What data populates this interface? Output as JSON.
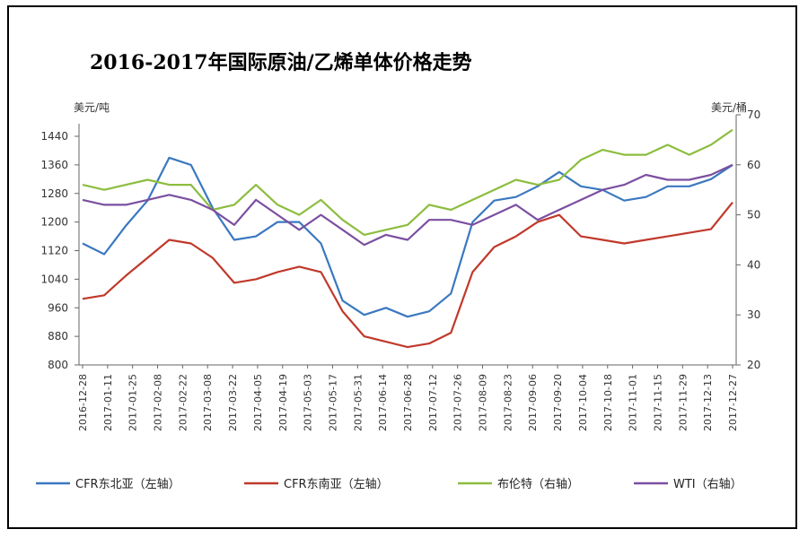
{
  "chart_data": {
    "type": "line",
    "title": "2016-2017年国际原油/乙烯单体价格走势",
    "left_unit": "美元/吨",
    "right_unit": "美元/桶",
    "y_left": {
      "min": 800,
      "max": 1440,
      "ticks": [
        800,
        880,
        960,
        1040,
        1120,
        1200,
        1280,
        1360,
        1440
      ]
    },
    "y_right": {
      "min": 20,
      "max": 70,
      "ticks": [
        20,
        30,
        40,
        50,
        60,
        70
      ]
    },
    "x_ticks": [
      "2016-12-28",
      "2017-01-11",
      "2017-01-25",
      "2017-02-08",
      "2017-02-22",
      "2017-03-08",
      "2017-03-22",
      "2017-04-05",
      "2017-04-19",
      "2017-05-03",
      "2017-05-17",
      "2017-05-31",
      "2017-06-14",
      "2017-06-28",
      "2017-07-12",
      "2017-07-26",
      "2017-08-09",
      "2017-08-23",
      "2017-09-06",
      "2017-09-20",
      "2017-10-04",
      "2017-10-18",
      "2017-11-01",
      "2017-11-15",
      "2017-11-29",
      "2017-12-13",
      "2017-12-27"
    ],
    "series": [
      {
        "name": "CFR东北亚（左轴）",
        "axis": "left",
        "color": "#3b78c0",
        "values": [
          1140,
          1110,
          1190,
          1260,
          1380,
          1360,
          1240,
          1150,
          1160,
          1200,
          1200,
          1140,
          980,
          940,
          960,
          935,
          950,
          1000,
          1200,
          1260,
          1270,
          1300,
          1340,
          1300,
          1290,
          1260,
          1270,
          1300,
          1300,
          1320,
          1360
        ]
      },
      {
        "name": "CFR东南亚（左轴）",
        "axis": "left",
        "color": "#c0392b",
        "values": [
          985,
          995,
          1050,
          1100,
          1150,
          1140,
          1100,
          1030,
          1040,
          1060,
          1075,
          1060,
          950,
          880,
          865,
          850,
          860,
          890,
          1060,
          1130,
          1160,
          1200,
          1220,
          1160,
          1150,
          1140,
          1150,
          1160,
          1170,
          1180,
          1255
        ]
      },
      {
        "name": "布伦特（右轴）",
        "axis": "right",
        "color": "#8cbd3f",
        "values": [
          56,
          55,
          56,
          57,
          56,
          56,
          51,
          52,
          56,
          52,
          50,
          53,
          49,
          46,
          47,
          48,
          52,
          51,
          53,
          55,
          57,
          56,
          57,
          61,
          63,
          62,
          62,
          64,
          62,
          64,
          67
        ]
      },
      {
        "name": "WTI（右轴）",
        "axis": "right",
        "color": "#7b4fa0",
        "values": [
          53,
          52,
          52,
          53,
          54,
          53,
          51,
          48,
          53,
          50,
          47,
          50,
          47,
          44,
          46,
          45,
          49,
          49,
          48,
          50,
          52,
          49,
          51,
          53,
          55,
          56,
          58,
          57,
          57,
          58,
          60
        ]
      }
    ]
  }
}
